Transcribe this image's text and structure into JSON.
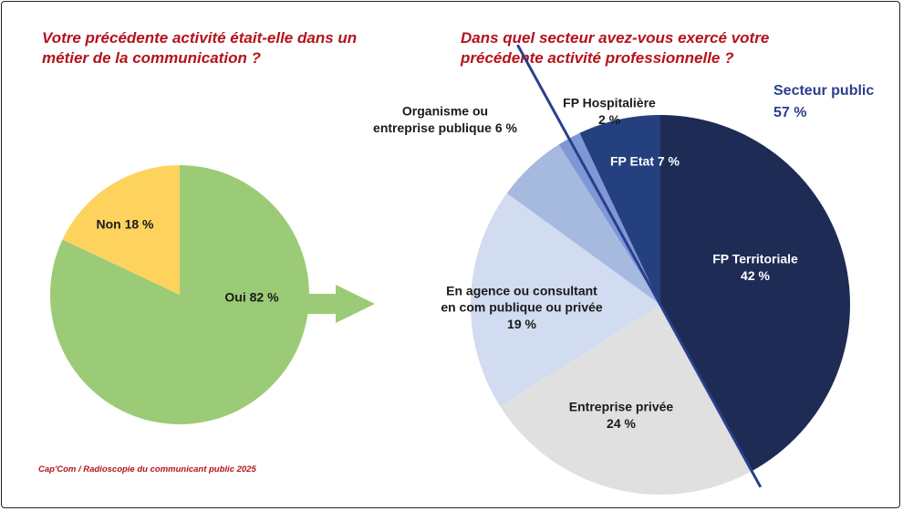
{
  "titles": {
    "left": "Votre précédente activité était-elle dans un métier de la communication ?",
    "right": "Dans quel secteur avez-vous exercé votre précédente activité professionnelle ?"
  },
  "source": "Cap'Com / Radioscopie du communicant public 2025",
  "secteur_public": {
    "label": "Secteur public",
    "value": "57 %"
  },
  "colors": {
    "title_red": "#b5121b",
    "oui": "#9ccb77",
    "non": "#fdd35e",
    "arrow": "#9ccb77",
    "fp_territoriale": "#1d2b55",
    "entreprise_privee": "#e0e0e0",
    "agence": "#d2dcf0",
    "organisme": "#a6b9de",
    "fp_hospitaliere": "#7e98d6",
    "fp_etat": "#24407f",
    "divider": "#2a3f8c"
  },
  "chart_data": [
    {
      "type": "pie",
      "title": "Votre précédente activité était-elle dans un métier de la communication ?",
      "categories": [
        "Oui",
        "Non"
      ],
      "values": [
        82,
        18
      ],
      "labels": [
        "Oui  82 %",
        "Non  18 %"
      ]
    },
    {
      "type": "pie",
      "title": "Dans quel secteur avez-vous exercé votre précédente activité professionnelle ?",
      "categories": [
        "FP Territoriale",
        "Entreprise privée",
        "En agence ou consultant en com publique ou privée",
        "Organisme ou entreprise publique",
        "FP Hospitalière",
        "FP Etat"
      ],
      "values": [
        42,
        24,
        19,
        6,
        2,
        7
      ],
      "labels": [
        [
          "FP Territoriale",
          "42 %"
        ],
        [
          "Entreprise privée",
          "24 %"
        ],
        [
          "En agence ou consultant",
          "en com publique ou privée",
          "19 %"
        ],
        [
          "Organisme ou",
          "entreprise publique   6 %"
        ],
        [
          "FP Hospitalière",
          "2 %"
        ],
        [
          "FP Etat 7 %"
        ]
      ],
      "group": {
        "label": "Secteur public",
        "value": "57 %"
      }
    }
  ]
}
